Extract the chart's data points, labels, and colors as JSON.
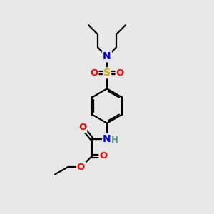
{
  "background_color": "#e8e8e8",
  "atom_colors": {
    "C": "#000000",
    "H": "#4a9a9a",
    "N": "#0000ff",
    "O": "#ff0000",
    "S": "#ccaa00"
  },
  "bond_color": "#000000",
  "bond_width": 1.6,
  "figsize": [
    3.0,
    3.0
  ],
  "dpi": 100
}
